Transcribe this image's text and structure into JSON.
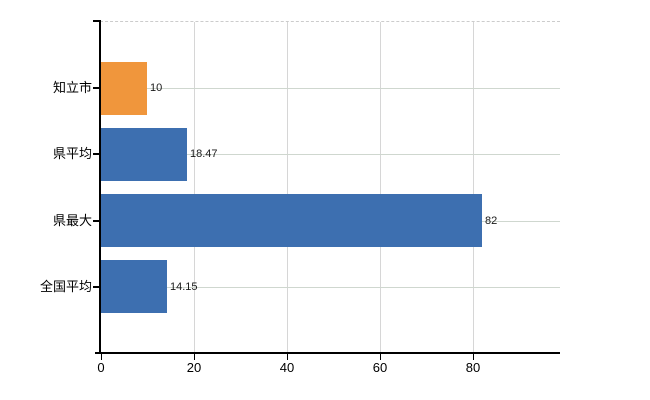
{
  "chart_data": {
    "type": "bar",
    "orientation": "horizontal",
    "title": "",
    "xlabel": "",
    "ylabel": "",
    "categories": [
      "知立市",
      "県平均",
      "県最大",
      "全国平均"
    ],
    "values": [
      10,
      18.47,
      82,
      14.15
    ],
    "value_labels": [
      "10",
      "18.47",
      "82",
      "14.15"
    ],
    "bar_colors": [
      "#f0963c",
      "#3d6fb0",
      "#3d6fb0",
      "#3d6fb0"
    ],
    "x_ticks": [
      0,
      20,
      40,
      60,
      80
    ],
    "x_tick_labels": [
      "0",
      "20",
      "40",
      "60",
      "80"
    ],
    "xlim": [
      0,
      99
    ],
    "grid": true,
    "legend": false
  },
  "colors": {
    "background": "#ffffff",
    "axis": "#000000",
    "gridline_vertical": "#d6d6d6",
    "gridline_horizontal": "#cfd7cf",
    "plot_top_border": "#cccccc",
    "category_label": "#000000",
    "value_label": "#1a1a1a",
    "tick_label": "#000000",
    "bar_orange": "#f0963c",
    "bar_blue": "#3d6fb0"
  }
}
